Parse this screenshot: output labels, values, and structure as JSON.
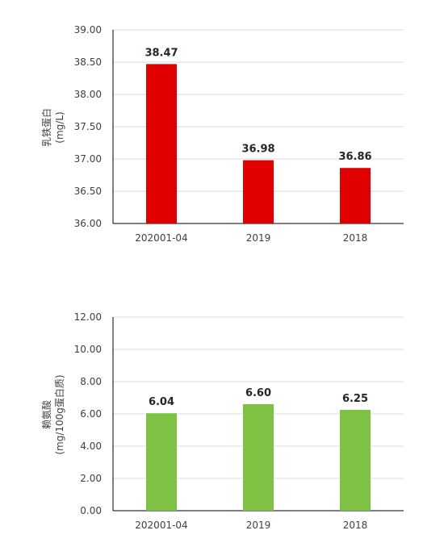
{
  "chart_data": [
    {
      "type": "bar",
      "categories": [
        "202001-04",
        "2019",
        "2018"
      ],
      "values": [
        38.47,
        36.98,
        36.86
      ],
      "value_labels": [
        "38.47",
        "36.98",
        "36.86"
      ],
      "ylabel": "乳铁蛋白",
      "yunit": "(mg/L)",
      "ylim": [
        36.0,
        39.0
      ],
      "yticks": [
        "36.00",
        "36.50",
        "37.00",
        "37.50",
        "38.00",
        "38.50",
        "39.00"
      ],
      "grid": true,
      "color": "#e00000"
    },
    {
      "type": "bar",
      "categories": [
        "202001-04",
        "2019",
        "2018"
      ],
      "values": [
        6.04,
        6.6,
        6.25
      ],
      "value_labels": [
        "6.04",
        "6.60",
        "6.25"
      ],
      "ylabel": "赖氨酸",
      "yunit": "(mg/100g蛋白质)",
      "ylim": [
        0.0,
        12.0
      ],
      "yticks": [
        "0.00",
        "2.00",
        "4.00",
        "6.00",
        "8.00",
        "10.00",
        "12.00"
      ],
      "grid": true,
      "color": "#7dc242"
    }
  ]
}
